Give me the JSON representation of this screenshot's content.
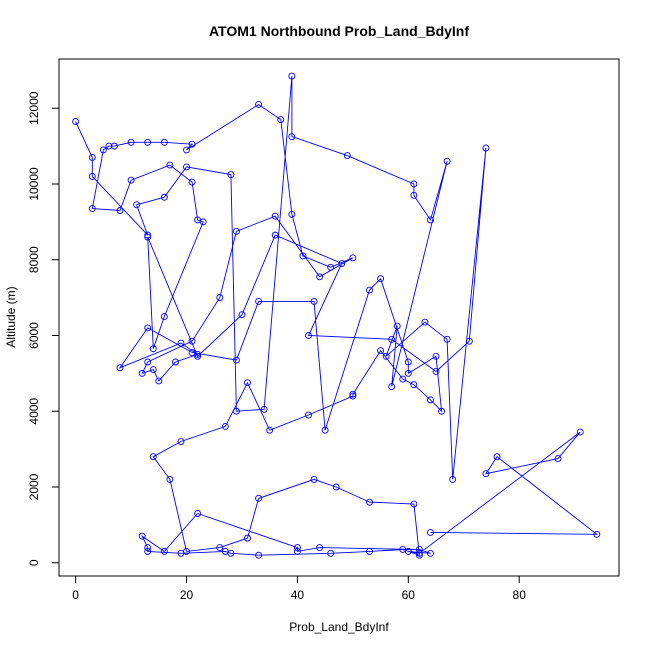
{
  "chart_data": {
    "type": "scatter",
    "title": "ATOM1 Northbound Prob_Land_BdyInf",
    "xlabel": "Prob_Land_BdyInf",
    "ylabel": "Altitude (m)",
    "xlim": [
      -3,
      98
    ],
    "ylim": [
      -350,
      13300
    ],
    "x_ticks": [
      0,
      20,
      40,
      60,
      80
    ],
    "y_ticks": [
      0,
      2000,
      4000,
      6000,
      8000,
      10000,
      12000
    ],
    "x_tick_labels": [
      "0",
      "20",
      "40",
      "60",
      "80"
    ],
    "y_tick_labels": [
      "0",
      "2000",
      "4000",
      "6000",
      "8000",
      "10000",
      "12000"
    ],
    "grid": false,
    "connected": true,
    "marker": "open-circle",
    "color": "#0000ff",
    "series": [
      {
        "x": [
          0,
          3,
          3,
          13,
          11,
          16,
          20,
          28,
          29,
          34,
          39,
          39,
          49,
          61,
          61,
          64,
          67,
          57,
          58,
          56,
          63,
          67,
          68,
          74,
          71,
          65,
          57,
          42,
          48,
          36,
          30,
          22,
          13,
          14,
          16,
          23,
          22,
          21,
          17,
          10,
          8,
          3,
          5,
          6,
          7,
          10,
          13,
          16,
          21,
          20,
          33,
          37,
          39,
          41,
          46,
          50,
          44,
          36,
          29,
          26,
          21,
          13,
          12,
          14,
          15,
          18,
          22,
          19,
          8,
          13,
          21,
          29,
          33,
          43,
          45,
          53,
          55,
          60,
          60,
          65,
          66,
          64,
          61,
          59,
          55,
          50,
          50,
          42,
          35,
          31,
          27,
          19,
          14,
          17,
          20,
          26,
          31,
          33,
          43,
          47,
          53,
          61,
          62,
          59,
          53,
          46,
          33,
          28,
          27,
          19,
          13,
          13,
          12,
          16,
          22,
          40,
          40,
          44,
          62,
          64,
          60,
          62,
          91,
          87,
          74,
          76,
          94,
          64
        ],
        "y": [
          11650,
          10700,
          10200,
          8650,
          9450,
          9650,
          10450,
          10250,
          4000,
          4050,
          12850,
          11250,
          10750,
          10000,
          9700,
          9050,
          10600,
          4650,
          6250,
          5450,
          6350,
          5900,
          2200,
          10950,
          5850,
          5050,
          5900,
          6000,
          7900,
          8650,
          6550,
          5450,
          8600,
          5650,
          6500,
          9000,
          9050,
          10050,
          10500,
          10100,
          9300,
          9350,
          10900,
          11000,
          11000,
          11100,
          11100,
          11100,
          11050,
          10900,
          12100,
          11700,
          9200,
          8100,
          7800,
          8050,
          7550,
          9150,
          8750,
          7000,
          5850,
          5300,
          5000,
          5100,
          4800,
          5300,
          5500,
          5800,
          5150,
          6200,
          5550,
          5350,
          6900,
          6900,
          3500,
          7200,
          7500,
          5300,
          5000,
          5450,
          4000,
          4300,
          4700,
          4850,
          5600,
          4450,
          4400,
          3900,
          3500,
          4750,
          3600,
          3200,
          2800,
          2200,
          300,
          400,
          650,
          1700,
          2200,
          2000,
          1600,
          1550,
          200,
          350,
          300,
          250,
          200,
          250,
          300,
          250,
          300,
          400,
          700,
          300,
          1300,
          400,
          300,
          400,
          350,
          250,
          300,
          250,
          3450,
          2750,
          2350,
          2800,
          750,
          800
        ]
      }
    ]
  }
}
